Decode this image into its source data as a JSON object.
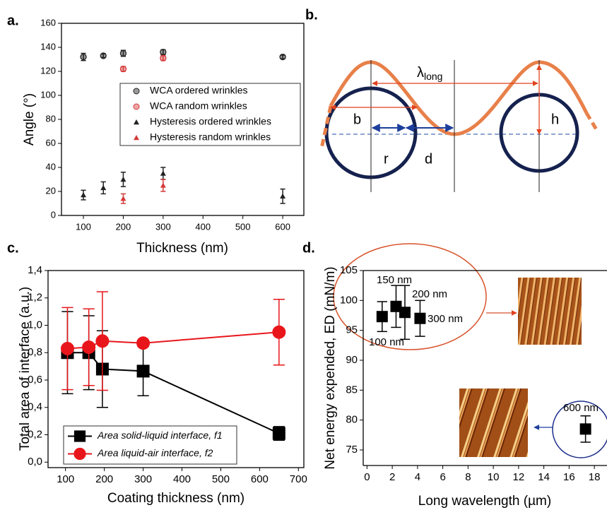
{
  "chart_data": [
    {
      "type": "scatter",
      "panel_label": "a.",
      "xlabel": "Thickness (nm)",
      "ylabel": "Angle (°)",
      "xlim": [
        45,
        653
      ],
      "xticks": [
        100,
        200,
        300,
        400,
        500,
        600
      ],
      "ylim": [
        0,
        160
      ],
      "yticks": [
        0,
        20,
        40,
        60,
        80,
        100,
        120,
        140,
        160
      ],
      "legend": "upper right",
      "series": [
        {
          "name": "WCA ordered wrinkles",
          "color": "#222222",
          "marker": "circle",
          "x": [
            100,
            150,
            200,
            300,
            600
          ],
          "values": [
            132,
            133,
            135,
            136,
            132
          ],
          "errors": [
            3,
            1.5,
            2.5,
            2,
            1.5
          ]
        },
        {
          "name": "WCA random wrinkles",
          "color": "#d43a3a",
          "marker": "circle",
          "x": [
            200,
            300
          ],
          "values": [
            122,
            131
          ],
          "errors": [
            2,
            2
          ]
        },
        {
          "name": "Hysteresis ordered wrinkles",
          "color": "#222222",
          "marker": "triangle",
          "x": [
            100,
            150,
            200,
            300,
            600
          ],
          "values": [
            17,
            23,
            30,
            35,
            16
          ],
          "errors": [
            4,
            5,
            6,
            5,
            6
          ]
        },
        {
          "name": "Hysteresis random wrinkles",
          "color": "#d43a3a",
          "marker": "triangle",
          "x": [
            200,
            300
          ],
          "values": [
            14,
            25
          ],
          "errors": [
            4,
            5
          ]
        }
      ]
    },
    {
      "type": "line",
      "panel_label": "c.",
      "xlabel": "Coating thickness (nm)",
      "ylabel": "Total area of interface (a.u.)",
      "xlim": [
        55,
        714
      ],
      "xticks": [
        100,
        200,
        300,
        400,
        500,
        600,
        700
      ],
      "ylim": [
        -0.04,
        1.4
      ],
      "yticks": [
        {
          "value": 0,
          "label": "0,0"
        },
        {
          "value": 0.2,
          "label": "0,2"
        },
        {
          "value": 0.4,
          "label": "0,4"
        },
        {
          "value": 0.6,
          "label": "0,6"
        },
        {
          "value": 0.8,
          "label": "0,8"
        },
        {
          "value": 1.0,
          "label": "1,0"
        },
        {
          "value": 1.2,
          "label": "1,2"
        },
        {
          "value": 1.4,
          "label": "1,4"
        }
      ],
      "legend": "lower left",
      "series": [
        {
          "name": "Area solid-liquid interface, f1",
          "color": "#000000",
          "marker": "square",
          "x": [
            105,
            160,
            195,
            300,
            650
          ],
          "values": [
            0.8,
            0.8,
            0.68,
            0.665,
            0.21
          ],
          "errors": [
            0.3,
            0.27,
            0.28,
            0.18,
            0.05
          ]
        },
        {
          "name": "Area liquid-air interface, f2",
          "color": "#e8161b",
          "marker": "circle",
          "x": [
            105,
            160,
            195,
            300,
            650
          ],
          "values": [
            0.83,
            0.84,
            0.885,
            0.87,
            0.95
          ],
          "errors": [
            0.3,
            0.28,
            0.36,
            0.02,
            0.24
          ]
        }
      ]
    },
    {
      "type": "scatter",
      "panel_label": "d.",
      "xlabel": "Long wavelength (µm)",
      "ylabel": "Net energy expended, ED (mN/m)",
      "xlim": [
        -0.3,
        19
      ],
      "xticks": [
        0,
        2,
        4,
        6,
        8,
        10,
        12,
        14,
        16,
        18
      ],
      "ylim": [
        72.4,
        105
      ],
      "yticks": [
        75,
        80,
        85,
        90,
        95,
        100,
        105
      ],
      "series": [
        {
          "color": "#000000",
          "marker": "square",
          "x": [
            1.2,
            2.3,
            3.0,
            4.2,
            17.3
          ],
          "values": [
            97.3,
            99,
            98,
            97,
            78.5
          ],
          "errors": [
            2.5,
            3.5,
            4.5,
            3,
            2.2
          ]
        }
      ],
      "annotations": [
        {
          "text": "150 nm",
          "color": "#e8161b"
        },
        {
          "text": "200 nm",
          "color": "#1a6b1a"
        },
        {
          "text": "300 nm",
          "color": "#1f3fd6"
        },
        {
          "text": "100 nm",
          "color": "#000000"
        },
        {
          "text": "600 nm",
          "color": "#6a22c8"
        }
      ]
    }
  ],
  "diagram": {
    "panel_label": "b.",
    "lambda": {
      "symbol": "λ",
      "subscript": "long"
    },
    "b": "b",
    "r": "r",
    "d": "d",
    "h": "h"
  }
}
